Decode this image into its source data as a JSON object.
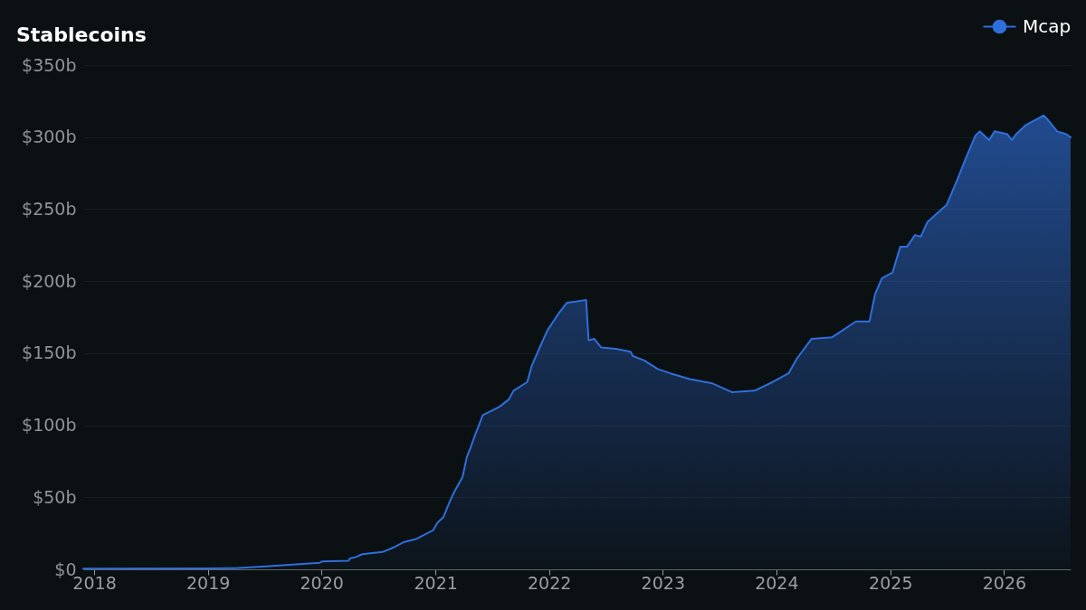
{
  "chart_data": {
    "type": "area",
    "title": "Stablecoins",
    "x": [
      "2017-11-27",
      "2018-12-24",
      "2019-03-29",
      "2019-07-05",
      "2019-12-27",
      "2020-01-04",
      "2020-03-28",
      "2020-04-01",
      "2020-04-19",
      "2020-05-11",
      "2020-07-15",
      "2020-08-25",
      "2020-09-23",
      "2020-10-30",
      "2020-12-24",
      "2021-01-08",
      "2021-01-26",
      "2021-02-16",
      "2021-03-03",
      "2021-03-29",
      "2021-04-12",
      "2021-04-23",
      "2021-05-08",
      "2021-05-19",
      "2021-06-02",
      "2021-06-21",
      "2021-07-27",
      "2021-08-25",
      "2021-09-09",
      "2021-10-23",
      "2021-11-06",
      "2021-12-02",
      "2021-12-27",
      "2022-02-02",
      "2022-02-27",
      "2022-04-01",
      "2022-04-30",
      "2022-05-08",
      "2022-05-26",
      "2022-06-17",
      "2022-08-03",
      "2022-09-20",
      "2022-09-27",
      "2022-11-03",
      "2022-12-16",
      "2023-01-26",
      "2023-03-29",
      "2023-06-10",
      "2023-08-11",
      "2023-10-23",
      "2023-12-20",
      "2024-02-09",
      "2024-03-06",
      "2024-04-23",
      "2024-06-27",
      "2024-07-26",
      "2024-09-12",
      "2024-10-26",
      "2024-11-13",
      "2024-12-05",
      "2025-01-08",
      "2025-02-02",
      "2025-02-24",
      "2025-03-21",
      "2025-04-09",
      "2025-04-30",
      "2025-06-10",
      "2025-07-01",
      "2025-08-07",
      "2025-08-29",
      "2025-10-01",
      "2025-10-15",
      "2025-11-14",
      "2025-12-02",
      "2026-01-12",
      "2026-01-26",
      "2026-02-09",
      "2026-03-10",
      "2026-04-12",
      "2026-05-08",
      "2026-05-22",
      "2026-06-21",
      "2026-07-20",
      "2026-08-03"
    ],
    "series": [
      {
        "name": "Mcap",
        "color": "#2f6fdb",
        "values": [
          0.4,
          0.6,
          0.8,
          2,
          4.6,
          5.5,
          5.9,
          7.5,
          8.4,
          10.5,
          12,
          15.7,
          19,
          21,
          27,
          32.5,
          36,
          47,
          54,
          64,
          78,
          84,
          93,
          99,
          107,
          109,
          113,
          118,
          124,
          130,
          141,
          154,
          166,
          178,
          185,
          186,
          187,
          159,
          160,
          154,
          153,
          151,
          148,
          145,
          139,
          136,
          132,
          129,
          123,
          124,
          130,
          136,
          146,
          160,
          161,
          165,
          172,
          172,
          191,
          202,
          206,
          224,
          224,
          232,
          231,
          241,
          249,
          253,
          272,
          284,
          301,
          304,
          298,
          304,
          302,
          298,
          302,
          308,
          312,
          315,
          312,
          304,
          302,
          300
        ]
      }
    ],
    "xlim": [
      "2017-11-27",
      "2026-08-03"
    ],
    "xticks": [
      "2018",
      "2019",
      "2020",
      "2021",
      "2022",
      "2023",
      "2024",
      "2025",
      "2026"
    ],
    "ylim": [
      0,
      350
    ],
    "yticks": [
      {
        "value": 0,
        "label": "$0"
      },
      {
        "value": 50,
        "label": "$50b"
      },
      {
        "value": 100,
        "label": "$100b"
      },
      {
        "value": 150,
        "label": "$150b"
      },
      {
        "value": 200,
        "label": "$200b"
      },
      {
        "value": 250,
        "label": "$250b"
      },
      {
        "value": 300,
        "label": "$300b"
      },
      {
        "value": 350,
        "label": "$350b"
      }
    ],
    "grid": "y",
    "legend": "top right"
  }
}
